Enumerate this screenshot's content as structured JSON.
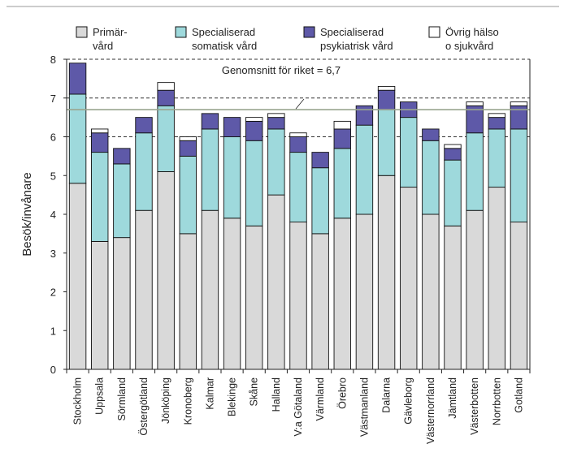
{
  "chart_data": {
    "type": "bar",
    "stacked": true,
    "ylabel": "Besök/invånare",
    "ylim": [
      0,
      8
    ],
    "yticks": [
      0,
      1,
      2,
      3,
      4,
      5,
      6,
      7,
      8
    ],
    "grid": "dashed horizontal at 6, 7 and 8",
    "legend": "top",
    "categories": [
      "Stockholm",
      "Uppsala",
      "Sörmland",
      "Östergötland",
      "Jönköping",
      "Kronoberg",
      "Kalmar",
      "Blekinge",
      "Skåne",
      "Halland",
      "V:a Götaland",
      "Värmland",
      "Örebro",
      "Västmanland",
      "Dalarna",
      "Gävleborg",
      "Västernorrland",
      "Jämtland",
      "Västerbotten",
      "Norrbotten",
      "Gotland"
    ],
    "series": [
      {
        "name": [
          "Primär-",
          "vård"
        ],
        "color": "#d9d9d9",
        "values": [
          4.8,
          3.3,
          3.4,
          4.1,
          5.1,
          3.5,
          4.1,
          3.9,
          3.7,
          4.5,
          3.8,
          3.5,
          3.9,
          4.0,
          5.0,
          4.7,
          4.0,
          3.7,
          4.1,
          4.7,
          3.8
        ]
      },
      {
        "name": [
          "Specialiserad",
          "somatisk vård"
        ],
        "color": "#9ed9dc",
        "values": [
          2.3,
          2.3,
          1.9,
          2.0,
          1.7,
          2.0,
          2.1,
          2.1,
          2.2,
          1.7,
          1.8,
          1.7,
          1.8,
          2.3,
          1.7,
          1.8,
          1.9,
          1.7,
          2.0,
          1.5,
          2.4
        ]
      },
      {
        "name": [
          "Specialiserad",
          "psykiatrisk vård"
        ],
        "color": "#5e59a8",
        "values": [
          0.8,
          0.5,
          0.4,
          0.4,
          0.4,
          0.4,
          0.4,
          0.5,
          0.5,
          0.3,
          0.4,
          0.4,
          0.5,
          0.5,
          0.5,
          0.4,
          0.3,
          0.3,
          0.7,
          0.3,
          0.6
        ]
      },
      {
        "name": [
          "Övrig hälso",
          "o sjukvård"
        ],
        "color": "#ffffff",
        "values": [
          0.0,
          0.1,
          0.0,
          0.0,
          0.2,
          0.1,
          0.0,
          0.0,
          0.1,
          0.1,
          0.1,
          0.0,
          0.2,
          0.0,
          0.1,
          0.0,
          0.0,
          0.1,
          0.1,
          0.1,
          0.1
        ]
      }
    ],
    "reference_line": {
      "value": 6.7,
      "label": "Genomsnitt för riket = 6,7",
      "color": "#9aa58f"
    }
  }
}
